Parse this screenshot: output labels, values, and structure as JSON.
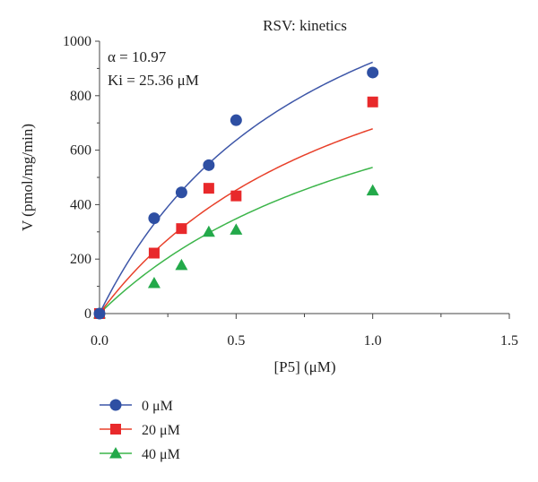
{
  "chart_data": {
    "type": "scatter",
    "title": "RSV: kinetics",
    "xlabel": "[P5] (μM)",
    "ylabel": "V (pmol/mg/min)",
    "xlim": [
      0,
      1.5
    ],
    "ylim": [
      0,
      1000
    ],
    "x_ticks": [
      "0.0",
      "0.5",
      "1.0",
      "1.5"
    ],
    "y_ticks": [
      "0",
      "200",
      "400",
      "600",
      "800",
      "1000"
    ],
    "annotations": [
      "α = 10.97",
      "Ki = 25.36 μM"
    ],
    "grid": false,
    "legend_position": "bottom-left",
    "series": [
      {
        "name": "0 μM",
        "marker": "circle",
        "color": "#2e4fa3",
        "line_color": "#3d56a8",
        "x": [
          0,
          0.2,
          0.3,
          0.4,
          0.5,
          1.0
        ],
        "y": [
          0,
          350,
          445,
          545,
          710,
          885
        ],
        "fit": {
          "vmax": 1680,
          "km": 0.82
        }
      },
      {
        "name": "20 μM",
        "marker": "square",
        "color": "#e8292b",
        "line_color": "#e8402a",
        "x": [
          0,
          0.2,
          0.3,
          0.4,
          0.5,
          1.0
        ],
        "y": [
          0,
          222,
          312,
          460,
          432,
          777
        ],
        "fit": {
          "vmax": 1350,
          "km": 0.99
        }
      },
      {
        "name": "40 μM",
        "marker": "triangle",
        "color": "#23a94a",
        "line_color": "#3cb54a",
        "x": [
          0,
          0.2,
          0.3,
          0.4,
          0.5,
          1.0
        ],
        "y": [
          0,
          112,
          178,
          300,
          308,
          452
        ],
        "fit": {
          "vmax": 1170,
          "km": 1.18
        }
      }
    ]
  }
}
